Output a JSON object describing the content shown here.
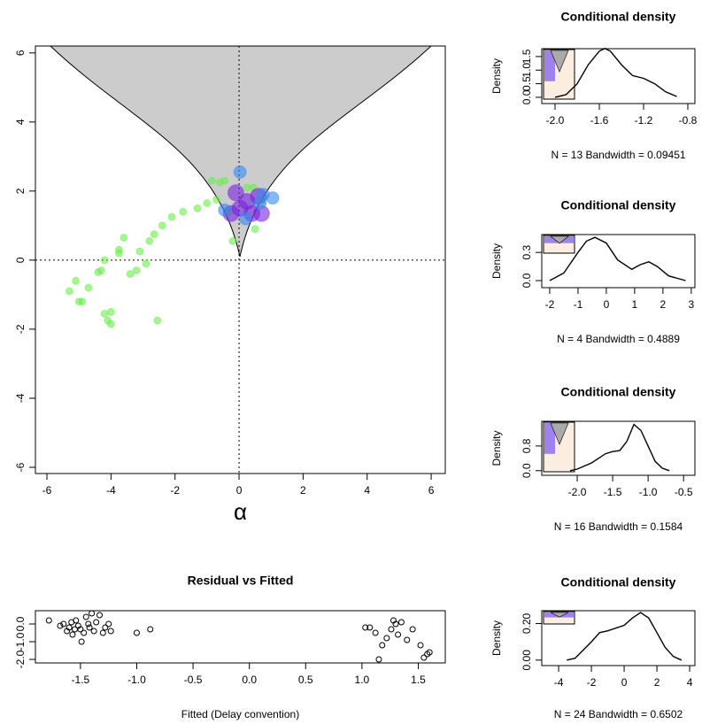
{
  "chart_data": [
    {
      "type": "scatter",
      "xlabel": "α",
      "xlim": [
        -6.36,
        6.44
      ],
      "ylim": [
        -6.18,
        6.2
      ],
      "xticks": [
        -6,
        -4,
        -2,
        0,
        2,
        4,
        6
      ],
      "yticks": [
        -6,
        -4,
        -2,
        0,
        2,
        4,
        6
      ],
      "hline": 0,
      "vline": 0,
      "marker": "filled",
      "series": [
        {
          "color": "#66ee44",
          "size": 4,
          "x": [
            -5.3,
            -5.1,
            -5.0,
            -4.9,
            -4.7,
            -4.4,
            -4.3,
            -4.2,
            -4.2,
            -4.0,
            -4.1,
            -4.0,
            -3.75,
            -3.75,
            -3.6,
            -3.4,
            -3.2,
            -3.1,
            -2.9,
            -2.8,
            -2.65,
            -2.55,
            -2.4,
            -2.1,
            -1.75,
            -1.3,
            -1.0,
            -0.85,
            -0.6,
            -0.45,
            -0.3,
            -0.2,
            0.25,
            0.45,
            0.5,
            0.75,
            -0.7
          ],
          "values": [
            -0.9,
            -0.6,
            -1.2,
            -1.2,
            -0.8,
            -0.35,
            -0.3,
            0,
            -1.55,
            -1.5,
            -1.75,
            -1.85,
            0.3,
            0.2,
            0.65,
            -0.4,
            -0.3,
            0.25,
            -0.1,
            0.55,
            0.75,
            -1.75,
            1.0,
            1.25,
            1.4,
            1.5,
            1.65,
            2.3,
            2.25,
            2.3,
            1.4,
            0.55,
            2.1,
            2.1,
            0.9,
            1.7,
            1.75
          ]
        },
        {
          "color": "#7722dd",
          "size": 9,
          "x": [
            -0.1,
            -0.25,
            0.25,
            0.03,
            0.4,
            0.6,
            0.7
          ],
          "values": [
            1.95,
            1.35,
            1.7,
            1.5,
            1.35,
            1.85,
            1.35
          ]
        },
        {
          "color": "#3388ee",
          "size": 7,
          "x": [
            0.03,
            0.2,
            0.65,
            0.75,
            1.05,
            -0.45
          ],
          "values": [
            2.55,
            1.2,
            1.65,
            1.9,
            1.8,
            1.45
          ]
        }
      ]
    },
    {
      "type": "scatter",
      "title": "Residual vs Fitted",
      "xlabel": "Fitted (Delay convention)",
      "xlim": [
        -1.9,
        1.74
      ],
      "ylim": [
        -2.2,
        0.75
      ],
      "marker": "open",
      "xticks": [
        -1.5,
        {
          "value": -1,
          "label": "-1.0"
        },
        -0.5,
        {
          "value": 0,
          "label": "0.0"
        },
        0.5,
        {
          "value": 1,
          "label": "1.0"
        },
        1.5
      ],
      "yticks": [
        {
          "value": -2,
          "label": "-2.0"
        },
        {
          "value": -1,
          "label": "-1.0"
        },
        {
          "value": 0,
          "label": "0.0"
        }
      ],
      "series": [
        {
          "color": "#000000",
          "size": 3,
          "x": [
            -1.78,
            -1.68,
            -1.65,
            -1.62,
            -1.6,
            -1.58,
            -1.57,
            -1.55,
            -1.54,
            -1.52,
            -1.5,
            -1.49,
            -1.47,
            -1.45,
            -1.43,
            -1.42,
            -1.4,
            -1.38,
            -1.36,
            -1.33,
            -1.3,
            -1.28,
            -1.25,
            -1.23,
            -1.0,
            -0.88,
            1.03,
            1.07,
            1.12,
            1.15,
            1.18,
            1.22,
            1.26,
            1.28,
            1.3,
            1.32,
            1.35,
            1.4,
            1.45,
            1.52,
            1.55,
            1.58,
            1.6
          ],
          "values": [
            0.2,
            -0.1,
            0.0,
            -0.4,
            -0.2,
            0.1,
            -0.6,
            -0.3,
            0.2,
            -0.1,
            -0.3,
            -1.0,
            -0.5,
            0.4,
            0.0,
            -0.2,
            0.6,
            -0.4,
            0.1,
            0.5,
            -0.5,
            -0.2,
            0.0,
            -0.4,
            -0.5,
            -0.3,
            -0.2,
            -0.2,
            -0.5,
            -2.0,
            -1.2,
            -0.8,
            -0.3,
            0.2,
            0.0,
            -0.6,
            0.1,
            -0.9,
            -0.3,
            -1.2,
            -1.9,
            -1.7,
            -1.6
          ]
        }
      ]
    },
    {
      "type": "line",
      "title": "Conditional density",
      "ylabel": "Density",
      "xlabel": "N = 13   Bandwidth = 0.09451",
      "xlim": [
        -2.12,
        -0.736
      ],
      "ylim": [
        -0.23,
        1.79
      ],
      "xticks": [
        {
          "value": -2,
          "label": "-2.0"
        },
        -1.6,
        -1.2,
        -0.8
      ],
      "yticks": [
        {
          "value": 0,
          "label": "0.0"
        },
        0.5,
        {
          "value": 1,
          "label": "1.0"
        },
        1.5
      ],
      "x": [
        -2.0,
        -1.9,
        -1.8,
        -1.7,
        -1.6,
        -1.55,
        -1.5,
        -1.4,
        -1.3,
        -1.2,
        -1.1,
        -1.0,
        -0.9
      ],
      "values": [
        0.0,
        0.1,
        0.5,
        1.2,
        1.7,
        1.8,
        1.7,
        1.2,
        0.8,
        0.7,
        0.5,
        0.2,
        0.03
      ]
    },
    {
      "type": "line",
      "title": "Conditional density",
      "ylabel": "Density",
      "xlabel": "N = 4   Bandwidth = 0.4889",
      "xlim": [
        -2.28,
        3.13
      ],
      "ylim": [
        -0.075,
        0.49
      ],
      "xticks": [
        -2,
        -1,
        0,
        1,
        2,
        3
      ],
      "yticks": [
        {
          "value": 0,
          "label": "0.0"
        },
        0.3
      ],
      "x": [
        -2.0,
        -1.5,
        -1.0,
        -0.7,
        -0.4,
        0.0,
        0.4,
        0.9,
        1.2,
        1.5,
        1.8,
        2.2,
        2.8
      ],
      "values": [
        0.0,
        0.08,
        0.3,
        0.42,
        0.46,
        0.4,
        0.22,
        0.12,
        0.17,
        0.2,
        0.15,
        0.05,
        0.0
      ]
    },
    {
      "type": "line",
      "title": "Conditional density",
      "ylabel": "Density",
      "xlabel": "N = 16   Bandwidth = 0.1584",
      "xlim": [
        -2.5,
        -0.34
      ],
      "ylim": [
        -0.15,
        1.6
      ],
      "xticks": [
        {
          "value": -2,
          "label": "-2.0"
        },
        -1.5,
        {
          "value": -1,
          "label": "-1.0"
        },
        -0.5
      ],
      "yticks": [
        {
          "value": 0,
          "label": "0.0"
        },
        0.8
      ],
      "x": [
        -2.1,
        -2.0,
        -1.8,
        -1.6,
        -1.5,
        -1.4,
        -1.3,
        -1.2,
        -1.1,
        -1.0,
        -0.9,
        -0.8,
        -0.7
      ],
      "values": [
        0.0,
        0.05,
        0.25,
        0.55,
        0.62,
        0.65,
        0.95,
        1.5,
        1.3,
        0.8,
        0.3,
        0.08,
        0.0
      ]
    },
    {
      "type": "line",
      "title": "Conditional density",
      "ylabel": "Density",
      "xlabel": "N = 24   Bandwidth = 0.6502",
      "xlim": [
        -5.03,
        4.32
      ],
      "ylim": [
        -0.03,
        0.27
      ],
      "xticks": [
        -4,
        -2,
        0,
        2,
        4
      ],
      "yticks": [
        {
          "value": 0,
          "label": "0.00"
        },
        {
          "value": 0.2,
          "label": "0.20"
        }
      ],
      "x": [
        -3.5,
        -3.0,
        -2.0,
        -1.5,
        -1.0,
        0.0,
        0.5,
        1.0,
        1.5,
        2.0,
        2.5,
        3.0,
        3.5
      ],
      "values": [
        0.0,
        0.01,
        0.1,
        0.15,
        0.16,
        0.19,
        0.23,
        0.26,
        0.23,
        0.15,
        0.07,
        0.02,
        0.0
      ]
    }
  ]
}
